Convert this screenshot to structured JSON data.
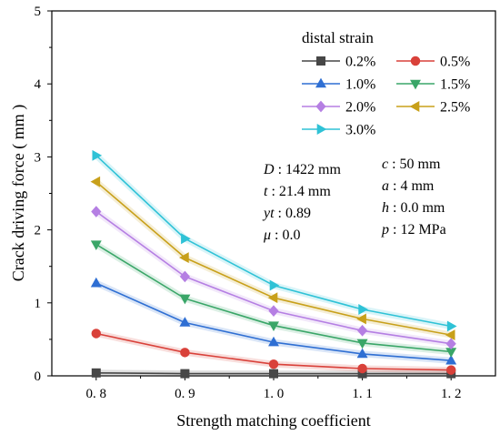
{
  "chart_data": {
    "type": "line",
    "xlabel": "Strength matching coefficient",
    "ylabel": "Crack driving force ( mm )",
    "xlim": [
      0.75,
      1.25
    ],
    "ylim": [
      0,
      5
    ],
    "x": [
      0.8,
      0.9,
      1.0,
      1.1,
      1.2
    ],
    "x_tick_labels": [
      "0. 8",
      "0. 9",
      "1. 0",
      "1. 1",
      "1. 2"
    ],
    "y_ticks": [
      0,
      1,
      2,
      3,
      4,
      5
    ],
    "legend_title": "distal strain",
    "legend_placement": "top-right",
    "grid": false,
    "series": [
      {
        "name": "0.2%",
        "color": "#474747",
        "marker": "square",
        "values": [
          0.04,
          0.03,
          0.03,
          0.03,
          0.03
        ]
      },
      {
        "name": "0.5%",
        "color": "#d9413a",
        "marker": "circle",
        "values": [
          0.58,
          0.32,
          0.16,
          0.1,
          0.08
        ]
      },
      {
        "name": "1.0%",
        "color": "#2f6fd3",
        "marker": "triangle-up",
        "values": [
          1.27,
          0.73,
          0.46,
          0.3,
          0.21
        ]
      },
      {
        "name": "1.5%",
        "color": "#3aa668",
        "marker": "triangle-down",
        "values": [
          1.8,
          1.06,
          0.69,
          0.45,
          0.33
        ]
      },
      {
        "name": "2.0%",
        "color": "#b57fe3",
        "marker": "diamond",
        "values": [
          2.25,
          1.36,
          0.89,
          0.62,
          0.44
        ]
      },
      {
        "name": "2.5%",
        "color": "#c8a01a",
        "marker": "triangle-left",
        "values": [
          2.66,
          1.62,
          1.07,
          0.78,
          0.56
        ]
      },
      {
        "name": "3.0%",
        "color": "#2fc2d6",
        "marker": "triangle-right",
        "values": [
          3.02,
          1.88,
          1.24,
          0.91,
          0.68
        ]
      }
    ],
    "annotations": {
      "left": [
        {
          "var": "D",
          "rest": " : 1422 mm"
        },
        {
          "var": "t",
          "rest": " : 21.4 mm"
        },
        {
          "var": "yt",
          "rest": " : 0.89"
        },
        {
          "var": "μ",
          "rest": " : 0.0"
        }
      ],
      "right": [
        {
          "var": "c",
          "rest": " : 50 mm"
        },
        {
          "var": "a",
          "rest": " : 4 mm"
        },
        {
          "var": "h",
          "rest": " : 0.0 mm"
        },
        {
          "var": "p",
          "rest": " : 12 MPa"
        }
      ]
    }
  }
}
